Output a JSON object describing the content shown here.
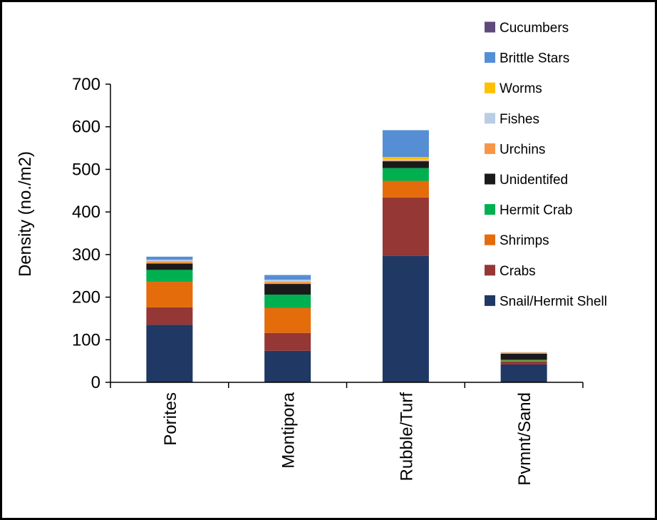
{
  "chart_data": {
    "type": "bar",
    "stacked": true,
    "title": "",
    "xlabel": "",
    "ylabel": "Density (no./m2)",
    "ylim": [
      0,
      700
    ],
    "yticks": [
      0,
      100,
      200,
      300,
      400,
      500,
      600,
      700
    ],
    "grid": false,
    "legend_position": "top-right",
    "categories": [
      "Porites",
      "Montipora",
      "Rubble/Turf",
      "Pvmnt/Sand"
    ],
    "series": [
      {
        "name": "Snail/Hermit Shell",
        "color": "#1F3864",
        "values": [
          135,
          74,
          297,
          42
        ]
      },
      {
        "name": "Crabs",
        "color": "#953735",
        "values": [
          41,
          42,
          137,
          7
        ]
      },
      {
        "name": "Shrimps",
        "color": "#E46C0A",
        "values": [
          60,
          59,
          39,
          2
        ]
      },
      {
        "name": "Hermit Crab",
        "color": "#00B050",
        "values": [
          28,
          31,
          30,
          2
        ]
      },
      {
        "name": "Unidentifed",
        "color": "#1A1A1A",
        "values": [
          15,
          25,
          16,
          14
        ]
      },
      {
        "name": "Urchins",
        "color": "#F79646",
        "values": [
          5,
          5,
          2,
          3
        ]
      },
      {
        "name": "Fishes",
        "color": "#B9CDE5",
        "values": [
          4,
          5,
          2,
          1
        ]
      },
      {
        "name": "Worms",
        "color": "#FFC000",
        "values": [
          0,
          0,
          6,
          0
        ]
      },
      {
        "name": "Brittle Stars",
        "color": "#558ED5",
        "values": [
          7,
          11,
          63,
          0
        ]
      },
      {
        "name": "Cucumbers",
        "color": "#604A7B",
        "values": [
          0,
          0,
          0,
          0
        ]
      }
    ]
  }
}
